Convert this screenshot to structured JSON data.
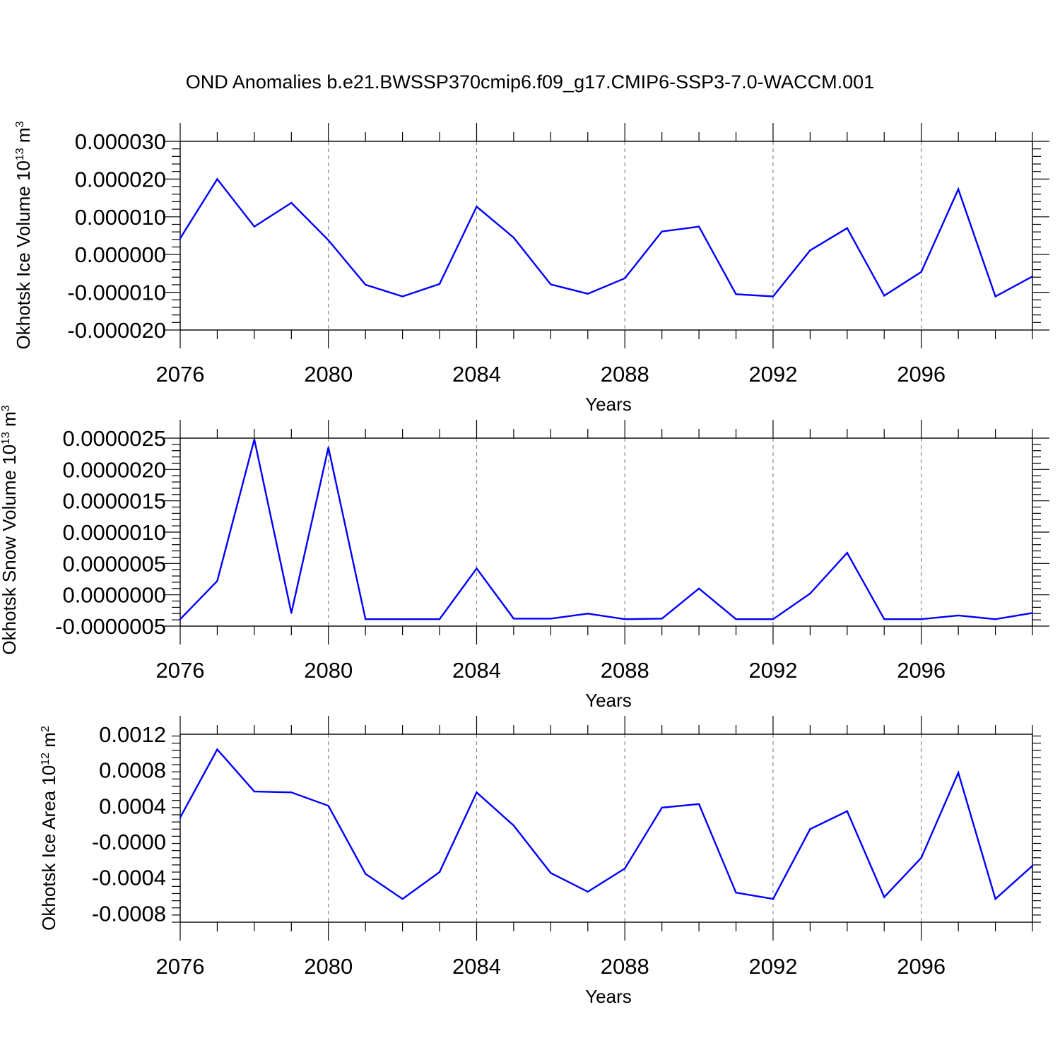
{
  "title": "OND Anomalies b.e21.BWSSP370cmip6.f09_g17.CMIP6-SSP3-7.0-WACCM.001",
  "chart_data": [
    {
      "type": "line",
      "xlabel": "Years",
      "ylabel": {
        "text": "Okhotsk Ice Volume 10",
        "sup": "13",
        "unit": " m",
        "unit_sup": "3"
      },
      "xlim": [
        2076,
        2099
      ],
      "ylim": [
        -2e-05,
        3e-05
      ],
      "x_ticks": [
        2076,
        2080,
        2084,
        2088,
        2092,
        2096
      ],
      "x_tick_labels": [
        "2076",
        "2080",
        "2084",
        "2088",
        "2092",
        "2096"
      ],
      "y_ticks": [
        -2e-05,
        -1e-05,
        0.0,
        1e-05,
        2e-05,
        3e-05
      ],
      "y_tick_labels": [
        "-0.000020",
        "-0.000010",
        "0.000000",
        "0.000010",
        "0.000020",
        "0.000030"
      ],
      "grid": "vertical dashed at major x ticks",
      "line_color": "#0000ff",
      "x": [
        2076,
        2077,
        2078,
        2079,
        2080,
        2081,
        2082,
        2083,
        2084,
        2085,
        2086,
        2087,
        2088,
        2089,
        2090,
        2091,
        2092,
        2093,
        2094,
        2095,
        2096,
        2097,
        2098,
        2099
      ],
      "y": [
        4.3e-06,
        2e-05,
        7.4e-06,
        1.37e-05,
        3.8e-06,
        -8e-06,
        -1.11e-05,
        -7.8e-06,
        1.27e-05,
        4.5e-06,
        -7.9e-06,
        -1.04e-05,
        -6.3e-06,
        6.1e-06,
        7.4e-06,
        -1.05e-05,
        -1.11e-05,
        1.1e-06,
        7e-06,
        -1.09e-05,
        -4.6e-06,
        1.73e-05,
        -1.11e-05,
        -5.8e-06
      ]
    },
    {
      "type": "line",
      "xlabel": "Years",
      "ylabel": {
        "text": "Okhotsk Snow Volume 10",
        "sup": "13",
        "unit": " m",
        "unit_sup": "3"
      },
      "xlim": [
        2076,
        2099
      ],
      "ylim": [
        -5e-07,
        2.5e-06
      ],
      "x_ticks": [
        2076,
        2080,
        2084,
        2088,
        2092,
        2096
      ],
      "x_tick_labels": [
        "2076",
        "2080",
        "2084",
        "2088",
        "2092",
        "2096"
      ],
      "y_ticks": [
        -5e-07,
        0.0,
        5e-07,
        1e-06,
        1.5e-06,
        2e-06,
        2.5e-06
      ],
      "y_tick_labels": [
        "-0.0000005",
        "0.0000000",
        "0.0000005",
        "0.0000010",
        "0.0000015",
        "0.0000020",
        "0.0000025"
      ],
      "grid": "vertical dashed at major x ticks",
      "line_color": "#0000ff",
      "x": [
        2076,
        2077,
        2078,
        2079,
        2080,
        2081,
        2082,
        2083,
        2084,
        2085,
        2086,
        2087,
        2088,
        2089,
        2090,
        2091,
        2092,
        2093,
        2094,
        2095,
        2096,
        2097,
        2098,
        2099
      ],
      "y": [
        -3.9e-07,
        2.2e-07,
        2.48e-06,
        -2.9e-07,
        2.35e-06,
        -3.9e-07,
        -3.9e-07,
        -3.9e-07,
        4.2e-07,
        -3.8e-07,
        -3.8e-07,
        -3e-07,
        -3.9e-07,
        -3.8e-07,
        1e-07,
        -3.9e-07,
        -3.9e-07,
        2e-08,
        6.7e-07,
        -3.9e-07,
        -3.9e-07,
        -3.3e-07,
        -3.9e-07,
        -2.9e-07
      ]
    },
    {
      "type": "line",
      "xlabel": "Years",
      "ylabel": {
        "text": "Okhotsk Ice Area 10",
        "sup": "12",
        "unit": " m",
        "unit_sup": "2"
      },
      "xlim": [
        2076,
        2099
      ],
      "ylim": [
        -0.0009,
        0.0012
      ],
      "x_ticks": [
        2076,
        2080,
        2084,
        2088,
        2092,
        2096
      ],
      "x_tick_labels": [
        "2076",
        "2080",
        "2084",
        "2088",
        "2092",
        "2096"
      ],
      "y_ticks": [
        -0.0008,
        -0.0004,
        0.0,
        0.0004,
        0.0008,
        0.0012
      ],
      "y_tick_labels": [
        "-0.0008",
        "-0.0004",
        "-0.0000",
        "0.0004",
        "0.0008",
        "0.0012"
      ],
      "grid": "vertical dashed at major x ticks",
      "line_color": "#0000ff",
      "x": [
        2076,
        2077,
        2078,
        2079,
        2080,
        2081,
        2082,
        2083,
        2084,
        2085,
        2086,
        2087,
        2088,
        2089,
        2090,
        2091,
        2092,
        2093,
        2094,
        2095,
        2096,
        2097,
        2098,
        2099
      ],
      "y": [
        0.00027,
        0.00103,
        0.00056,
        0.00055,
        0.0004,
        -0.00036,
        -0.00064,
        -0.00034,
        0.00055,
        0.00018,
        -0.00035,
        -0.00056,
        -0.0003,
        0.00038,
        0.00042,
        -0.00057,
        -0.00064,
        0.00014,
        0.00034,
        -0.00062,
        -0.00018,
        0.00077,
        -0.00064,
        -0.00027
      ]
    }
  ]
}
